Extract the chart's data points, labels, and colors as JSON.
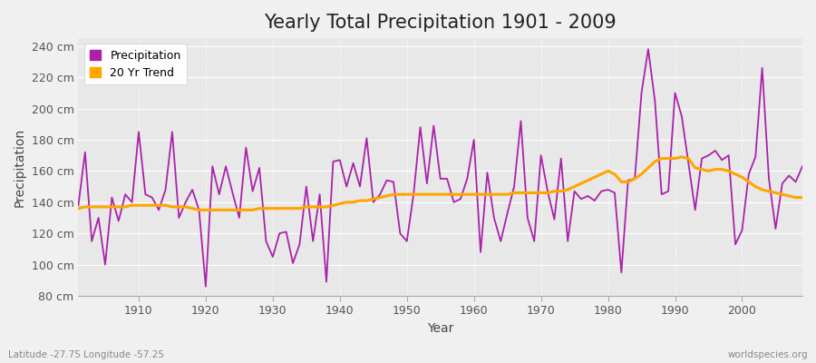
{
  "title": "Yearly Total Precipitation 1901 - 2009",
  "xlabel": "Year",
  "ylabel": "Precipitation",
  "years": [
    1901,
    1902,
    1903,
    1904,
    1905,
    1906,
    1907,
    1908,
    1909,
    1910,
    1911,
    1912,
    1913,
    1914,
    1915,
    1916,
    1917,
    1918,
    1919,
    1920,
    1921,
    1922,
    1923,
    1924,
    1925,
    1926,
    1927,
    1928,
    1929,
    1930,
    1931,
    1932,
    1933,
    1934,
    1935,
    1936,
    1937,
    1938,
    1939,
    1940,
    1941,
    1942,
    1943,
    1944,
    1945,
    1946,
    1947,
    1948,
    1949,
    1950,
    1951,
    1952,
    1953,
    1954,
    1955,
    1956,
    1957,
    1958,
    1959,
    1960,
    1961,
    1962,
    1963,
    1964,
    1965,
    1966,
    1967,
    1968,
    1969,
    1970,
    1971,
    1972,
    1973,
    1974,
    1975,
    1976,
    1977,
    1978,
    1979,
    1980,
    1981,
    1982,
    1983,
    1984,
    1985,
    1986,
    1987,
    1988,
    1989,
    1990,
    1991,
    1992,
    1993,
    1994,
    1995,
    1996,
    1997,
    1998,
    1999,
    2000,
    2001,
    2002,
    2003,
    2004,
    2005,
    2006,
    2007,
    2008,
    2009
  ],
  "precipitation": [
    138,
    172,
    115,
    130,
    100,
    143,
    128,
    145,
    140,
    185,
    145,
    143,
    135,
    148,
    185,
    130,
    140,
    148,
    135,
    86,
    163,
    145,
    163,
    146,
    130,
    175,
    147,
    162,
    115,
    105,
    120,
    121,
    101,
    113,
    150,
    115,
    145,
    89,
    166,
    167,
    150,
    165,
    150,
    181,
    140,
    145,
    154,
    153,
    120,
    115,
    145,
    188,
    152,
    189,
    155,
    155,
    140,
    142,
    155,
    180,
    108,
    159,
    130,
    115,
    133,
    150,
    192,
    130,
    115,
    170,
    147,
    129,
    168,
    115,
    147,
    142,
    144,
    141,
    147,
    148,
    146,
    95,
    154,
    155,
    210,
    238,
    205,
    145,
    147,
    210,
    195,
    165,
    135,
    168,
    170,
    173,
    167,
    170,
    113,
    122,
    158,
    169,
    226,
    155,
    123,
    152,
    157,
    153,
    163
  ],
  "trend": [
    136,
    137,
    137,
    137,
    137,
    137,
    137,
    137,
    138,
    138,
    138,
    138,
    138,
    138,
    137,
    137,
    137,
    136,
    135,
    135,
    135,
    135,
    135,
    135,
    135,
    135,
    135,
    136,
    136,
    136,
    136,
    136,
    136,
    136,
    137,
    137,
    137,
    137,
    138,
    139,
    140,
    140,
    141,
    141,
    142,
    143,
    144,
    145,
    145,
    145,
    145,
    145,
    145,
    145,
    145,
    145,
    145,
    145,
    145,
    145,
    145,
    145,
    145,
    145,
    145,
    146,
    146,
    146,
    146,
    146,
    146,
    147,
    147,
    148,
    150,
    152,
    154,
    156,
    158,
    160,
    158,
    153,
    153,
    155,
    158,
    162,
    166,
    168,
    168,
    168,
    169,
    168,
    162,
    161,
    160,
    161,
    161,
    160,
    158,
    156,
    153,
    150,
    148,
    147,
    146,
    145,
    144,
    143,
    143
  ],
  "precip_color": "#AA22AA",
  "trend_color": "#FFA500",
  "fig_bg_color": "#F0F0F0",
  "plot_bg_color": "#E8E8E8",
  "ylim": [
    80,
    245
  ],
  "xlim": [
    1901,
    2009
  ],
  "yticks": [
    80,
    100,
    120,
    140,
    160,
    180,
    200,
    220,
    240
  ],
  "ytick_labels": [
    "80 cm",
    "100 cm",
    "120 cm",
    "140 cm",
    "160 cm",
    "180 cm",
    "200 cm",
    "220 cm",
    "240 cm"
  ],
  "xticks": [
    1910,
    1920,
    1930,
    1940,
    1950,
    1960,
    1970,
    1980,
    1990,
    2000
  ],
  "title_fontsize": 15,
  "axis_fontsize": 9,
  "legend_fontsize": 9,
  "tick_label_color": "#555555",
  "footer_left": "Latitude -27.75 Longitude -57.25",
  "footer_right": "worldspecies.org"
}
